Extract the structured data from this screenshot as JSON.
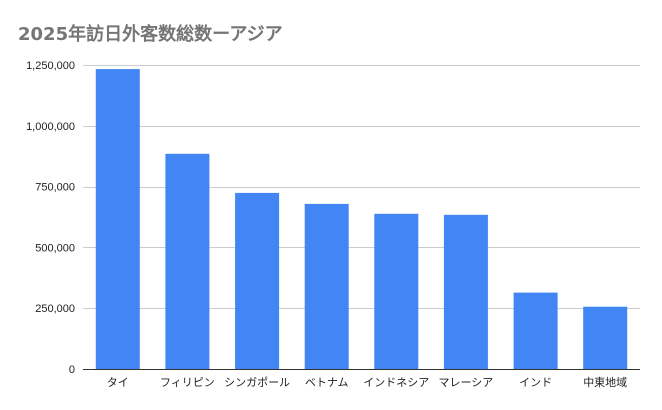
{
  "chart_data": {
    "type": "bar",
    "title": "2025年訪日外客数総数ーアジア",
    "xlabel": "",
    "ylabel": "",
    "categories": [
      "タイ",
      "フィリピン",
      "シンガポール",
      "ベトナム",
      "インドネシア",
      "マレーシア",
      "インド",
      "中東地域"
    ],
    "values": [
      1233000,
      885000,
      724000,
      679000,
      638000,
      634000,
      314000,
      256000
    ],
    "ylim": [
      0,
      1250000
    ],
    "yticks": [
      0,
      250000,
      500000,
      750000,
      1000000,
      1250000
    ],
    "ytick_labels": [
      "0",
      "250,000",
      "500,000",
      "750,000",
      "1,000,000",
      "1,250,000"
    ],
    "grid": true,
    "legend": "none",
    "bar_color": "#4285f4",
    "grid_color": "#cccccc",
    "axis_color": "#333333"
  }
}
